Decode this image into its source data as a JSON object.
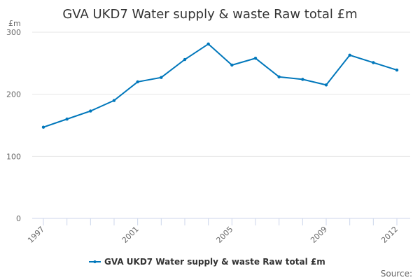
{
  "chart_data": {
    "type": "line",
    "title": "GVA UKD7 Water supply & waste Raw total £m",
    "ylabel": "£m",
    "xlabel": "",
    "categories": [
      "1997",
      "1998",
      "1999",
      "2000",
      "2001",
      "2002",
      "2003",
      "2004",
      "2005",
      "2006",
      "2007",
      "2008",
      "2009",
      "2010",
      "2011",
      "2012"
    ],
    "x_tick_labels": [
      "1997",
      "2001",
      "2005",
      "2009",
      "2012"
    ],
    "y_ticks": [
      "0",
      "100",
      "200",
      "300"
    ],
    "ylim": [
      0,
      300
    ],
    "grid": true,
    "legend_position": "bottom",
    "series": [
      {
        "name": "GVA UKD7 Water supply & waste Raw total £m",
        "color": "#0077bb",
        "values": [
          147,
          160,
          173,
          190,
          220,
          227,
          256,
          281,
          247,
          258,
          228,
          224,
          215,
          263,
          251,
          239
        ]
      }
    ],
    "source_label": "Source:"
  }
}
